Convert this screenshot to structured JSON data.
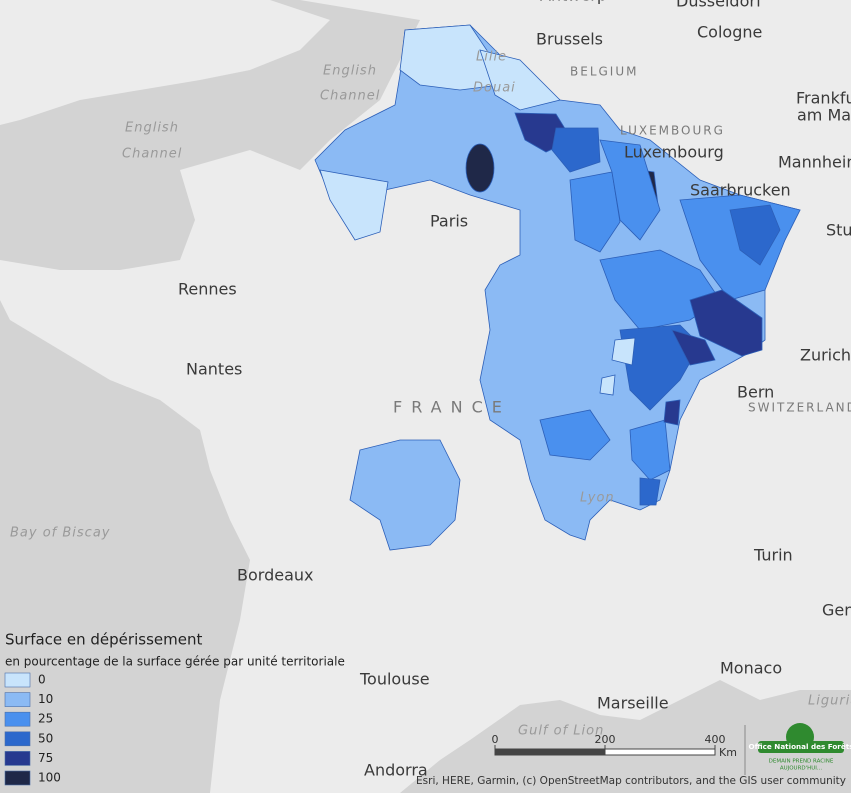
{
  "map_labels": [
    {
      "text": "Antwerp"
    },
    {
      "text": "Dusseldorf"
    },
    {
      "text": "Brussels"
    },
    {
      "text": "Cologne"
    },
    {
      "text": "BELGIUM"
    },
    {
      "text": "Frankfurt"
    },
    {
      "text": "am Main"
    },
    {
      "text": "LUXEMBOURG"
    },
    {
      "text": "Luxembourg"
    },
    {
      "text": "Mannheim"
    },
    {
      "text": "Saarbrucken"
    },
    {
      "text": "Stuttgart"
    },
    {
      "text": "Paris"
    },
    {
      "text": "Rennes"
    },
    {
      "text": "Nantes"
    },
    {
      "text": "FRANCE"
    },
    {
      "text": "Zurich"
    },
    {
      "text": "Bern"
    },
    {
      "text": "SWITZERLAND"
    },
    {
      "text": "Bordeaux"
    },
    {
      "text": "Turin"
    },
    {
      "text": "Genoa"
    },
    {
      "text": "Monaco"
    },
    {
      "text": "Toulouse"
    },
    {
      "text": "Marseille"
    },
    {
      "text": "Andorra"
    },
    {
      "text": "Liguria"
    },
    {
      "text": "English"
    },
    {
      "text": "Channel"
    },
    {
      "text": "English"
    },
    {
      "text": "Channel"
    },
    {
      "text": "Bay of Biscay"
    },
    {
      "text": "Gulf of Lion"
    },
    {
      "text": "Lille"
    },
    {
      "text": "Douai"
    },
    {
      "text": "Lyon"
    }
  ],
  "legend": {
    "title": "Surface en dépérissement",
    "subtitle": "en pourcentage de la surface gérée par unité territoriale",
    "items": [
      {
        "value": 0,
        "color": "#c8e4fc"
      },
      {
        "value": 10,
        "color": "#8bbaf4"
      },
      {
        "value": 25,
        "color": "#4a90ee"
      },
      {
        "value": 50,
        "color": "#2c68cc"
      },
      {
        "value": 75,
        "color": "#27398f"
      },
      {
        "value": 100,
        "color": "#1f2848"
      }
    ]
  },
  "scale": {
    "ticks": [
      0,
      200,
      400
    ],
    "unit": "Km"
  },
  "attribution": "Esri, HERE, Garmin, (c) OpenStreetMap contributors, and the GIS user community",
  "logo": {
    "name": "Office National des Forêts",
    "motto_1": "DEMAIN PREND RACINE",
    "motto_2": "AUJOURD'HUI..."
  }
}
